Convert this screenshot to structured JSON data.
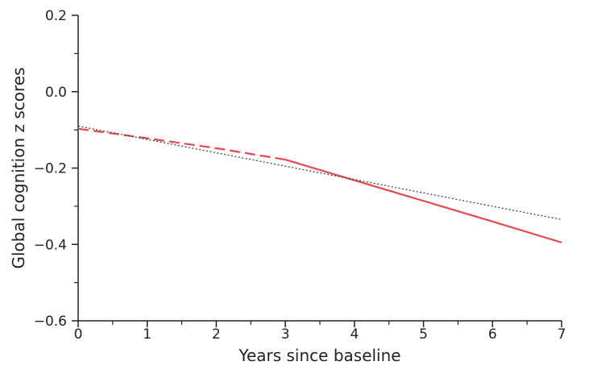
{
  "chart_data": {
    "type": "line",
    "title": "",
    "xlabel": "Years since baseline",
    "ylabel": "Global cognition z scores",
    "xlim": [
      0,
      7
    ],
    "ylim": [
      -0.6,
      0.2
    ],
    "grid": false,
    "legend": "none",
    "x_ticks": [
      0,
      1,
      2,
      3,
      4,
      5,
      6,
      7
    ],
    "x_tick_labels": [
      "0",
      "1",
      "2",
      "3",
      "4",
      "5",
      "6",
      "7"
    ],
    "y_ticks": [
      -0.6,
      -0.4,
      -0.2,
      0.0,
      0.2
    ],
    "y_tick_labels": [
      "−0.6",
      "−0.4",
      "−0.2",
      "0.0",
      "0.2"
    ],
    "series": [
      {
        "line_style": "dashed",
        "color": "#e8474c",
        "x": [
          0,
          1,
          2,
          3
        ],
        "y": [
          -0.097,
          -0.122,
          -0.148,
          -0.178
        ]
      },
      {
        "line_style": "solid",
        "color": "#e8474c",
        "x": [
          3,
          4,
          5,
          6,
          7
        ],
        "y": [
          -0.178,
          -0.232,
          -0.286,
          -0.34,
          -0.395
        ]
      },
      {
        "line_style": "dotted",
        "color": "#444444",
        "x": [
          0,
          7
        ],
        "y": [
          -0.09,
          -0.335
        ]
      }
    ]
  }
}
